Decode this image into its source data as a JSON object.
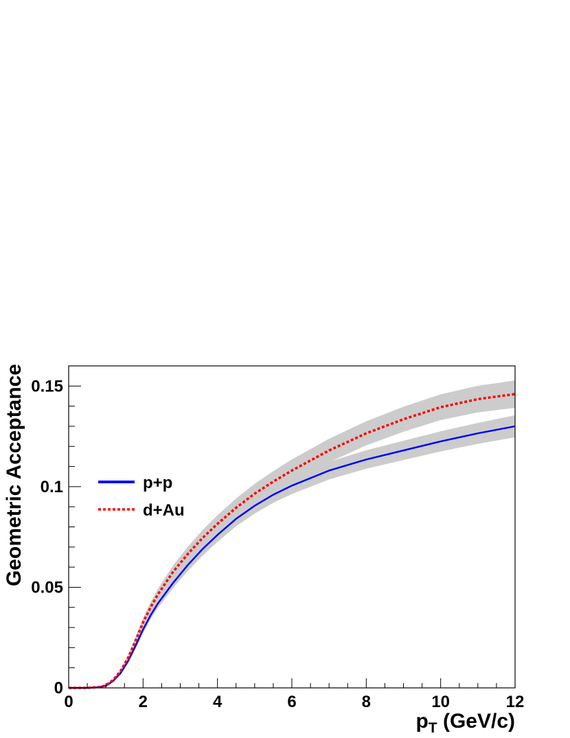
{
  "chart_data": {
    "type": "line",
    "title": "",
    "xlabel": "p",
    "xlabel_sub": "T",
    "xlabel_unit": " (GeV/c)",
    "ylabel": "Geometric Acceptance",
    "xlim": [
      0,
      12
    ],
    "ylim": [
      0,
      0.16
    ],
    "x_ticks": [
      0,
      2,
      4,
      6,
      8,
      10,
      12
    ],
    "x_tick_labels": [
      "0",
      "2",
      "4",
      "6",
      "8",
      "10",
      "12"
    ],
    "y_ticks": [
      0,
      0.05,
      0.1,
      0.15
    ],
    "y_tick_labels": [
      "0",
      "0.05",
      "0.1",
      "0.15"
    ],
    "grid": false,
    "legend_position": "middle-left",
    "band_color": "#cccccc",
    "series": [
      {
        "name": "p+p",
        "color": "#0000ff",
        "style": "solid",
        "x": [
          0,
          0.5,
          0.8,
          1.0,
          1.2,
          1.4,
          1.6,
          1.8,
          2.0,
          2.2,
          2.4,
          2.8,
          3.2,
          3.6,
          4.0,
          4.5,
          5.0,
          5.5,
          6.0,
          7.0,
          8.0,
          9.0,
          10.0,
          11.0,
          12.0
        ],
        "values": [
          0,
          0,
          0.0003,
          0.001,
          0.0035,
          0.0075,
          0.0135,
          0.021,
          0.029,
          0.036,
          0.042,
          0.052,
          0.061,
          0.069,
          0.076,
          0.084,
          0.0905,
          0.096,
          0.1005,
          0.108,
          0.1135,
          0.118,
          0.1225,
          0.1265,
          0.13
        ],
        "band_halfwidth": [
          0,
          0,
          0,
          0,
          0.0005,
          0.001,
          0.0013,
          0.0016,
          0.0018,
          0.002,
          0.0022,
          0.0026,
          0.003,
          0.0033,
          0.0035,
          0.0037,
          0.0039,
          0.004,
          0.0042,
          0.0044,
          0.0046,
          0.0048,
          0.005,
          0.0052,
          0.0055
        ]
      },
      {
        "name": "d+Au",
        "color": "#ff0000",
        "style": "dotted",
        "x": [
          0,
          0.5,
          0.8,
          1.0,
          1.2,
          1.4,
          1.6,
          1.8,
          2.0,
          2.2,
          2.4,
          2.8,
          3.2,
          3.6,
          4.0,
          4.5,
          5.0,
          5.5,
          6.0,
          7.0,
          8.0,
          9.0,
          10.0,
          11.0,
          12.0
        ],
        "values": [
          0,
          0,
          0.0004,
          0.0012,
          0.004,
          0.0085,
          0.015,
          0.0235,
          0.0325,
          0.04,
          0.0465,
          0.0575,
          0.0665,
          0.0745,
          0.0815,
          0.0895,
          0.0965,
          0.1025,
          0.108,
          0.118,
          0.1265,
          0.1335,
          0.1395,
          0.1435,
          0.146
        ],
        "band_halfwidth": [
          0,
          0,
          0,
          0,
          0.0005,
          0.001,
          0.0015,
          0.002,
          0.0022,
          0.0025,
          0.0028,
          0.0032,
          0.0036,
          0.004,
          0.0043,
          0.0046,
          0.0049,
          0.0052,
          0.0055,
          0.0058,
          0.006,
          0.0062,
          0.0064,
          0.0066,
          0.0068
        ]
      }
    ]
  }
}
